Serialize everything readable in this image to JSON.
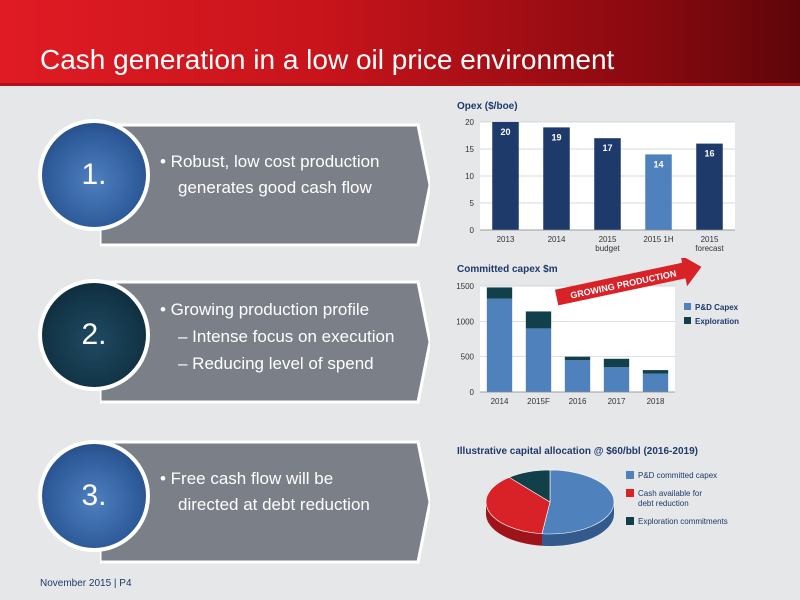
{
  "slide": {
    "title": "Cash generation in a low oil price environment",
    "footer": "November 2015 | P4"
  },
  "points": [
    {
      "number": "1.",
      "lines": [
        "• Robust, low cost production",
        "generates good cash flow"
      ]
    },
    {
      "number": "2.",
      "lines": [
        "• Growing production profile",
        "– Intense focus on execution",
        "– Reducing level of spend"
      ]
    },
    {
      "number": "3.",
      "lines": [
        "• Free cash flow will be",
        "directed at debt reduction"
      ]
    }
  ],
  "annotation": {
    "growing": "GROWING PRODUCTION"
  },
  "colors": {
    "navy": "#1d3a6b",
    "light_blue": "#4f81bd",
    "dark_teal": "#12404a",
    "red": "#d92128"
  },
  "chart_data": [
    {
      "type": "bar",
      "title": "Opex ($/boe)",
      "categories": [
        "2013",
        "2014",
        "2015 budget",
        "2015 1H",
        "2015 forecast"
      ],
      "category_lines": [
        [
          "2013"
        ],
        [
          "2014"
        ],
        [
          "2015",
          "budget"
        ],
        [
          "2015 1H"
        ],
        [
          "2015",
          "forecast"
        ]
      ],
      "values": [
        20,
        19,
        17,
        14,
        16
      ],
      "highlight_index": 3,
      "ylim": [
        0,
        20
      ],
      "yticks": [
        0,
        5,
        10,
        15,
        20
      ],
      "grid": true
    },
    {
      "type": "bar",
      "stacked": true,
      "title": "Committed capex $m",
      "categories": [
        "2014",
        "2015F",
        "2016",
        "2017",
        "2018"
      ],
      "series": [
        {
          "name": "P&D Capex",
          "values": [
            1320,
            900,
            450,
            350,
            260
          ]
        },
        {
          "name": "Exploration",
          "values": [
            160,
            240,
            50,
            120,
            50
          ]
        }
      ],
      "ylim": [
        0,
        1500
      ],
      "yticks": [
        0,
        500,
        1000,
        1500
      ],
      "legend": "right",
      "grid": true
    },
    {
      "type": "pie",
      "title": "Illustrative capital allocation @ $60/bbl (2016-2019)",
      "labels": [
        "P&D committed capex",
        "Cash available for debt reduction",
        "Exploration commitments"
      ],
      "label_lines": [
        [
          "P&D committed capex"
        ],
        [
          "Cash available for",
          "debt reduction"
        ],
        [
          "Exploration commitments"
        ]
      ],
      "values": [
        52,
        37,
        11
      ],
      "legend": "right"
    }
  ]
}
